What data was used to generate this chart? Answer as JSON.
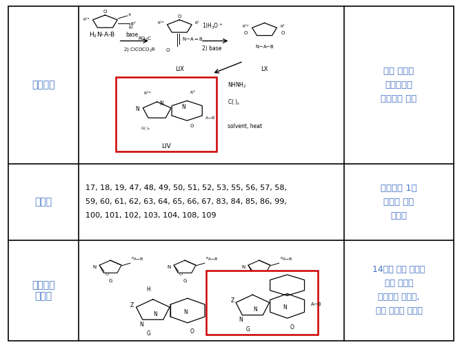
{
  "fig_width": 6.7,
  "fig_height": 5.04,
  "dpi": 100,
  "background": "#ffffff",
  "border_color": "#000000",
  "col1_color": "#4472C4",
  "col3_color": "#4472C4",
  "lw": 1.2,
  "c0": 0.018,
  "c1": 0.17,
  "c2": 0.745,
  "c3": 0.982,
  "r0": 0.982,
  "r1": 0.528,
  "r2": 0.308,
  "r3": 0.018,
  "col1_labels": [
    {
      "text": "제조방법",
      "fontsize": 10
    },
    {
      "text": "실시예",
      "fontsize": 10
    },
    {
      "text": "대표적인\n실시예",
      "fontsize": 10
    }
  ],
  "col3_row1": [
    "모해 구조의",
    "제조방법을",
    "설명하고 있음"
  ],
  "col3_row2": [
    "선택요소 1의",
    "구조를 갖는",
    "실시예"
  ],
  "col3_row3": [
    "14개의 선택 가능한",
    "모해 구조를",
    "제시하고 있는데,",
    "그중 하나로 개시됨"
  ],
  "row2_line1": "17, 18, 19, 47, 48, 49, 50, 51, 52, 53, 55, 56, 57, 58,",
  "row2_line2": "59, 60, 61, 62, 63, 64, 65, 66, 67, 83, 84, 85, 86, 99,",
  "row2_line3": "100, 101, 102, 103, 104, 108, 109",
  "red": "#CC0000"
}
